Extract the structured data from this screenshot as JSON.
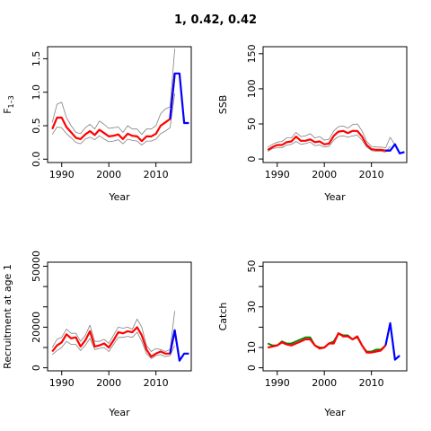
{
  "title": "1, 0.42, 0.42",
  "colors": {
    "median": "#ff0000",
    "ci": "#808080",
    "projection": "#0000ff",
    "observed": "#008000"
  },
  "chart_data": [
    {
      "type": "line",
      "ylabel": "F1-3",
      "xlabel": "Year",
      "xlim": [
        1987,
        2017.5
      ],
      "ylim": [
        -0.05,
        1.68
      ],
      "xticks": [
        1990,
        2000,
        2010
      ],
      "yticks": [
        0,
        0.5,
        1,
        1.5
      ],
      "ytick_labels": [
        "0.0",
        "0.5",
        "1.0",
        "1.5"
      ],
      "series": [
        {
          "role": "median",
          "x": [
            1988,
            1989,
            1990,
            1991,
            1992,
            1993,
            1994,
            1995,
            1996,
            1997,
            1998,
            1999,
            2000,
            2001,
            2002,
            2003,
            2004,
            2005,
            2006,
            2007,
            2008,
            2009,
            2010,
            2011,
            2012,
            2013,
            2014
          ],
          "values": [
            0.45,
            0.62,
            0.62,
            0.48,
            0.4,
            0.32,
            0.3,
            0.37,
            0.42,
            0.36,
            0.44,
            0.39,
            0.34,
            0.35,
            0.37,
            0.3,
            0.38,
            0.35,
            0.34,
            0.27,
            0.34,
            0.34,
            0.38,
            0.5,
            0.55,
            0.6,
            1.28
          ]
        },
        {
          "role": "ci_upper",
          "x": [
            1988,
            1989,
            1990,
            1991,
            1992,
            1993,
            1994,
            1995,
            1996,
            1997,
            1998,
            1999,
            2000,
            2001,
            2002,
            2003,
            2004,
            2005,
            2006,
            2007,
            2008,
            2009,
            2010,
            2011,
            2012,
            2013,
            2014
          ],
          "values": [
            0.55,
            0.82,
            0.85,
            0.62,
            0.5,
            0.4,
            0.38,
            0.47,
            0.52,
            0.45,
            0.57,
            0.52,
            0.46,
            0.47,
            0.48,
            0.4,
            0.5,
            0.45,
            0.45,
            0.37,
            0.45,
            0.45,
            0.5,
            0.68,
            0.75,
            0.78,
            1.65
          ]
        },
        {
          "role": "ci_lower",
          "x": [
            1988,
            1989,
            1990,
            1991,
            1992,
            1993,
            1994,
            1995,
            1996,
            1997,
            1998,
            1999,
            2000,
            2001,
            2002,
            2003,
            2004,
            2005,
            2006,
            2007,
            2008,
            2009,
            2010,
            2011,
            2012,
            2013,
            2014
          ],
          "values": [
            0.37,
            0.48,
            0.47,
            0.38,
            0.32,
            0.25,
            0.23,
            0.3,
            0.33,
            0.29,
            0.35,
            0.3,
            0.26,
            0.27,
            0.29,
            0.23,
            0.3,
            0.28,
            0.27,
            0.21,
            0.27,
            0.27,
            0.3,
            0.38,
            0.42,
            0.47,
            0.98
          ]
        },
        {
          "role": "projection",
          "x": [
            2013,
            2014,
            2015,
            2016,
            2017
          ],
          "values": [
            0.6,
            1.28,
            1.28,
            0.54,
            0.54
          ]
        }
      ]
    },
    {
      "type": "line",
      "ylabel": "SSB",
      "xlabel": "Year",
      "xlim": [
        1987,
        2017.5
      ],
      "ylim": [
        -5,
        160
      ],
      "xticks": [
        1990,
        2000,
        2010
      ],
      "yticks": [
        0,
        50,
        100,
        150
      ],
      "ytick_labels": [
        "0",
        "50",
        "100",
        "150"
      ],
      "series": [
        {
          "role": "ci_upper",
          "x": [
            1988,
            1989,
            1990,
            1991,
            1992,
            1993,
            1994,
            1995,
            1996,
            1997,
            1998,
            1999,
            2000,
            2001,
            2002,
            2003,
            2004,
            2005,
            2006,
            2007,
            2008,
            2009,
            2010,
            2011,
            2012,
            2013,
            2014,
            2015
          ],
          "values": [
            17,
            21,
            24,
            25,
            30,
            30,
            38,
            32,
            33,
            36,
            30,
            32,
            27,
            28,
            40,
            46,
            47,
            44,
            49,
            50,
            40,
            25,
            18,
            17,
            17,
            16,
            31,
            20
          ]
        },
        {
          "role": "ci_lower",
          "x": [
            1988,
            1989,
            1990,
            1991,
            1992,
            1993,
            1994,
            1995,
            1996,
            1997,
            1998,
            1999,
            2000,
            2001,
            2002,
            2003,
            2004,
            2005,
            2006,
            2007,
            2008,
            2009,
            2010,
            2011,
            2012,
            2013,
            2014
          ],
          "values": [
            11,
            15,
            16,
            16,
            20,
            21,
            25,
            21,
            22,
            24,
            19,
            20,
            17,
            18,
            27,
            32,
            33,
            31,
            33,
            34,
            27,
            17,
            12,
            11,
            11,
            10,
            18
          ]
        },
        {
          "role": "median",
          "x": [
            1988,
            1989,
            1990,
            1991,
            1992,
            1993,
            1994,
            1995,
            1996,
            1997,
            1998,
            1999,
            2000,
            2001,
            2002,
            2003,
            2004,
            2005,
            2006,
            2007,
            2008,
            2009,
            2010,
            2011,
            2012,
            2013,
            2014
          ],
          "values": [
            13,
            17,
            20,
            20,
            24,
            25,
            32,
            26,
            26,
            28,
            24,
            25,
            21,
            22,
            33,
            39,
            40,
            37,
            40,
            40,
            32,
            20,
            14,
            13,
            13,
            12,
            12
          ]
        },
        {
          "role": "projection",
          "x": [
            2013,
            2014,
            2015,
            2016,
            2017
          ],
          "values": [
            12,
            12,
            21,
            8,
            10
          ]
        }
      ]
    },
    {
      "type": "line",
      "ylabel": "Recruitment at age 1",
      "xlabel": "Year",
      "xlim": [
        1987,
        2017.5
      ],
      "ylim": [
        -1500,
        52000
      ],
      "xticks": [
        1990,
        2000,
        2010
      ],
      "yticks": [
        0,
        10000,
        20000,
        30000,
        40000,
        50000
      ],
      "ytick_labels": [
        "0",
        "",
        "20000",
        "",
        "",
        "50000"
      ],
      "yticks_minor_label_gap": true,
      "series": [
        {
          "role": "ci_upper",
          "x": [
            1988,
            1989,
            1990,
            1991,
            1992,
            1993,
            1994,
            1995,
            1996,
            1997,
            1998,
            1999,
            2000,
            2001,
            2002,
            2003,
            2004,
            2005,
            2006,
            2007,
            2008,
            2009,
            2010,
            2011,
            2012,
            2013,
            2014
          ],
          "values": [
            10000,
            14000,
            15000,
            19000,
            17000,
            17000,
            13000,
            16000,
            21000,
            13000,
            13000,
            14000,
            12000,
            16000,
            20000,
            19500,
            20000,
            19000,
            24000,
            20000,
            11000,
            8000,
            9500,
            9000,
            8000,
            9000,
            28000
          ]
        },
        {
          "role": "ci_lower",
          "x": [
            1988,
            1989,
            1990,
            1991,
            1992,
            1993,
            1994,
            1995,
            1996,
            1997,
            1998,
            1999,
            2000,
            2001,
            2002,
            2003,
            2004,
            2005,
            2006,
            2007,
            2008,
            2009,
            2010,
            2011,
            2012,
            2013,
            2014
          ],
          "values": [
            6500,
            8500,
            10000,
            13000,
            11500,
            11500,
            8500,
            11000,
            14500,
            9000,
            9500,
            10000,
            8000,
            11500,
            15000,
            15000,
            15500,
            15000,
            17500,
            13000,
            7000,
            4500,
            6000,
            6500,
            5500,
            6000,
            11000
          ]
        },
        {
          "role": "median",
          "x": [
            1988,
            1989,
            1990,
            1991,
            1992,
            1993,
            1994,
            1995,
            1996,
            1997,
            1998,
            1999,
            2000,
            2001,
            2002,
            2003,
            2004,
            2005,
            2006,
            2007,
            2008,
            2009,
            2010,
            2011,
            2012,
            2013,
            2014
          ],
          "values": [
            8000,
            11000,
            12500,
            16500,
            14500,
            15000,
            10500,
            13500,
            18000,
            10500,
            11000,
            12000,
            10000,
            13500,
            17500,
            17000,
            18000,
            17500,
            20000,
            16000,
            9000,
            5500,
            7000,
            8000,
            7000,
            7000,
            18500
          ]
        },
        {
          "role": "projection",
          "x": [
            2013,
            2014,
            2015,
            2016,
            2017
          ],
          "values": [
            7000,
            18500,
            3500,
            7000,
            7000
          ]
        }
      ]
    },
    {
      "type": "line",
      "ylabel": "Catch",
      "xlabel": "Year",
      "xlim": [
        1987,
        2017.5
      ],
      "ylim": [
        -1.5,
        52
      ],
      "xticks": [
        1990,
        2000,
        2010
      ],
      "yticks": [
        0,
        10,
        20,
        30,
        40,
        50
      ],
      "ytick_labels": [
        "0",
        "10",
        "",
        "30",
        "",
        "50"
      ],
      "series": [
        {
          "role": "observed",
          "x": [
            1988,
            1989,
            1990,
            1991,
            1992,
            1993,
            1994,
            1995,
            1996,
            1997,
            1998,
            1999,
            2000,
            2001,
            2002,
            2003,
            2004,
            2005,
            2006,
            2007,
            2008,
            2009,
            2010,
            2011,
            2012,
            2013
          ],
          "values": [
            12,
            11,
            11,
            13,
            12,
            12,
            13,
            14,
            15,
            15,
            11,
            10,
            10,
            12,
            13,
            17,
            16,
            16,
            14,
            15,
            11,
            8,
            8,
            9,
            9,
            11
          ]
        },
        {
          "role": "median",
          "x": [
            1988,
            1989,
            1990,
            1991,
            1992,
            1993,
            1994,
            1995,
            1996,
            1997,
            1998,
            1999,
            2000,
            2001,
            2002,
            2003,
            2004,
            2005,
            2006,
            2007,
            2008,
            2009,
            2010,
            2011,
            2012,
            2013
          ],
          "values": [
            10,
            10.5,
            11,
            12.5,
            11.5,
            11,
            12,
            13,
            14,
            14,
            11,
            9.5,
            10,
            12,
            12,
            17,
            15.5,
            15.5,
            14,
            15.5,
            11,
            7.5,
            7.5,
            8,
            8.5,
            11
          ]
        },
        {
          "role": "projection",
          "x": [
            2013,
            2014,
            2015,
            2016
          ],
          "values": [
            11,
            22,
            4,
            6
          ]
        }
      ]
    }
  ]
}
